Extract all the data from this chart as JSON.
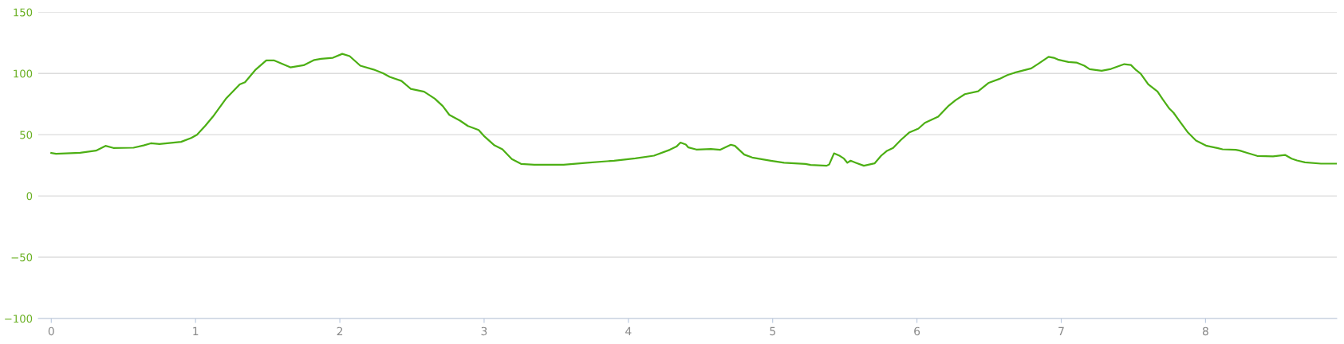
{
  "chart_data": {
    "type": "line",
    "grid": "y",
    "xlim": [
      -0.09,
      8.91
    ],
    "xticks": [
      0,
      1,
      2,
      3,
      4,
      5,
      6,
      7,
      8
    ],
    "ylim": [
      -100,
      150
    ],
    "yticks": [
      -100,
      -50,
      0,
      50,
      100,
      150
    ],
    "x": [
      0,
      0.033,
      0.2,
      0.31,
      0.376,
      0.43,
      0.57,
      0.64,
      0.69,
      0.75,
      0.9,
      0.97,
      1.01,
      1.066,
      1.12,
      1.214,
      1.306,
      1.343,
      1.417,
      1.49,
      1.546,
      1.657,
      1.749,
      1.823,
      1.869,
      1.952,
      2.017,
      2.068,
      2.142,
      2.234,
      2.3,
      2.345,
      2.427,
      2.492,
      2.584,
      2.658,
      2.713,
      2.759,
      2.833,
      2.888,
      2.962,
      2.998,
      3.072,
      3.127,
      3.192,
      3.256,
      3.348,
      3.551,
      3.716,
      3.9,
      4.048,
      4.177,
      4.287,
      4.333,
      4.361,
      4.398,
      4.416,
      4.471,
      4.572,
      4.637,
      4.71,
      4.738,
      4.803,
      4.858,
      4.987,
      5.079,
      5.227,
      5.263,
      5.374,
      5.392,
      5.425,
      5.466,
      5.494,
      5.518,
      5.54,
      5.577,
      5.632,
      5.706,
      5.752,
      5.789,
      5.835,
      5.89,
      5.945,
      6.01,
      6.055,
      6.147,
      6.221,
      6.267,
      6.332,
      6.424,
      6.498,
      6.571,
      6.627,
      6.69,
      6.792,
      6.847,
      6.912,
      6.949,
      6.977,
      7.05,
      7.105,
      7.16,
      7.197,
      7.28,
      7.345,
      7.437,
      7.483,
      7.52,
      7.551,
      7.603,
      7.667,
      7.704,
      7.75,
      7.778,
      7.824,
      7.879,
      7.934,
      8.008,
      8.081,
      8.118,
      8.21,
      8.238,
      8.284,
      8.358,
      8.468,
      8.551,
      8.597,
      8.634,
      8.689,
      8.8,
      8.906
    ],
    "series": [
      {
        "color": "#4caf14",
        "values": [
          35.1,
          34.4,
          35.3,
          37,
          40.9,
          39.2,
          39.4,
          41.3,
          43,
          42.4,
          44.2,
          47.4,
          50,
          57.1,
          64.7,
          79.9,
          91.1,
          92.9,
          103.2,
          110.6,
          110.6,
          105,
          106.7,
          111,
          111.9,
          112.8,
          116,
          114.1,
          106.3,
          103.2,
          100.2,
          97.2,
          93.9,
          87.4,
          85.1,
          79.4,
          73.4,
          66.2,
          61.5,
          57.1,
          53.9,
          49.1,
          41.3,
          38.1,
          30.1,
          26.2,
          25.5,
          25.5,
          27.1,
          28.8,
          30.7,
          32.9,
          37.7,
          40.3,
          43.6,
          42,
          39.6,
          37.9,
          38.3,
          37.7,
          41.8,
          40.9,
          33.8,
          31.4,
          28.8,
          27.1,
          26.2,
          25.3,
          24.7,
          25.8,
          34.8,
          32.7,
          30.5,
          27.1,
          28.8,
          27.1,
          24.7,
          26.6,
          32.9,
          36.6,
          39.2,
          45.9,
          51.7,
          55,
          59.7,
          64.7,
          73.8,
          78.1,
          83.1,
          85.5,
          92.4,
          95.5,
          98.7,
          101.1,
          104.1,
          108.4,
          113.6,
          112.8,
          111.3,
          109.3,
          108.9,
          106.3,
          103.5,
          102.2,
          103.7,
          107.6,
          106.9,
          102.6,
          99.8,
          91.1,
          85.3,
          78.8,
          71.2,
          68,
          60.4,
          51.7,
          45.2,
          40.9,
          39.2,
          38.1,
          37.7,
          37,
          35.3,
          32.7,
          32.3,
          33.5,
          30.5,
          29,
          27.5,
          26.4,
          26.4
        ]
      }
    ]
  }
}
